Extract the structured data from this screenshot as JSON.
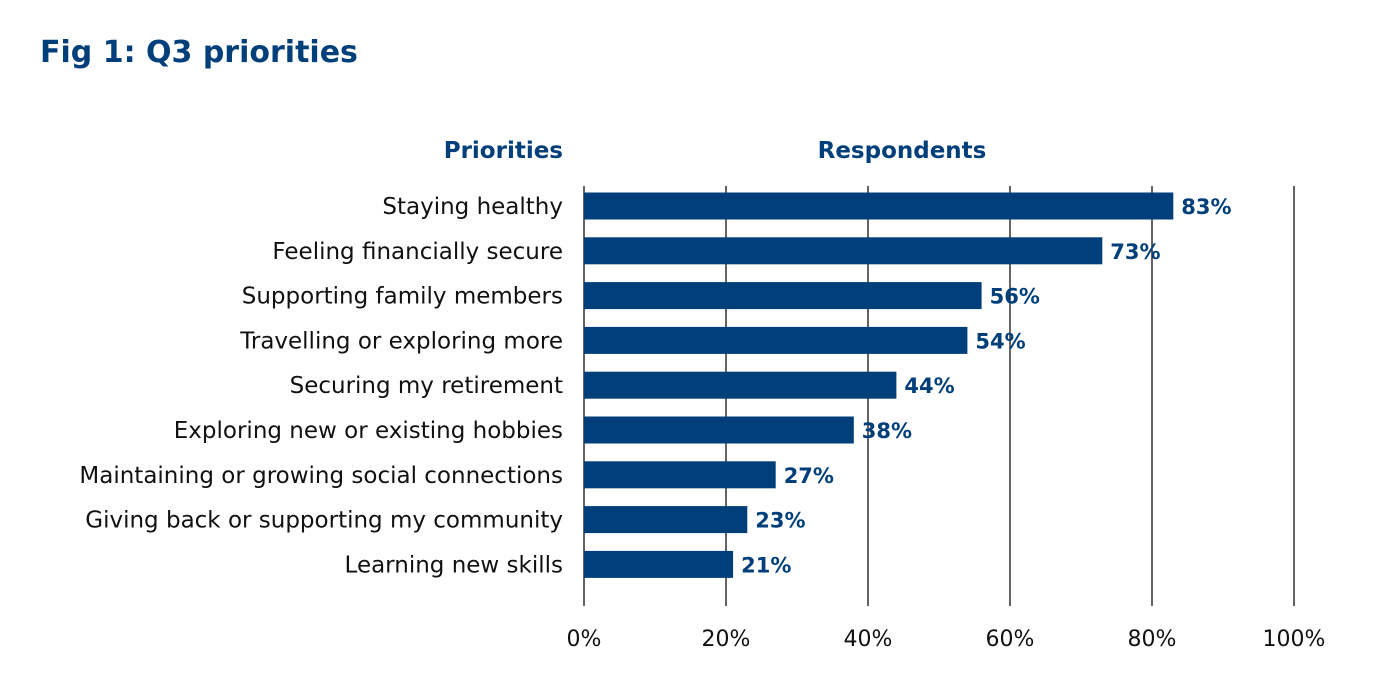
{
  "chart_data": {
    "type": "bar",
    "orientation": "horizontal",
    "title": "Fig 1: Q3 priorities",
    "category_header": "Priorities",
    "value_header": "Respondents",
    "categories": [
      "Staying healthy",
      "Feeling financially secure",
      "Supporting family members",
      "Travelling or exploring more",
      "Securing my retirement",
      "Exploring new or existing hobbies",
      "Maintaining or growing social connections",
      "Giving back or supporting my community",
      "Learning new skills"
    ],
    "values": [
      83,
      73,
      56,
      54,
      44,
      38,
      27,
      23,
      21
    ],
    "value_labels": [
      "83%",
      "73%",
      "56%",
      "54%",
      "44%",
      "38%",
      "27%",
      "23%",
      "21%"
    ],
    "xlim": [
      0,
      100
    ],
    "xticks": [
      0,
      20,
      40,
      60,
      80,
      100
    ],
    "xtick_labels": [
      "0%",
      "20%",
      "40%",
      "60%",
      "80%",
      "100%"
    ],
    "grid": "vertical",
    "colors": {
      "bar": "#003f7a",
      "title": "#003f7a",
      "value_label": "#003f7a",
      "grid": "#222222"
    }
  }
}
